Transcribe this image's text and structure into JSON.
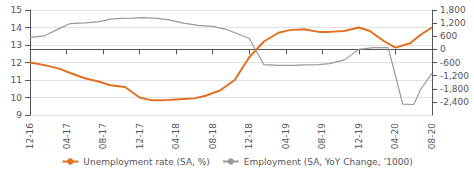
{
  "chart_data": {
    "type": "line",
    "xlim": [
      0,
      11
    ],
    "xticks": [
      {
        "value": 0,
        "label": "12-16"
      },
      {
        "value": 1,
        "label": "04-17"
      },
      {
        "value": 2,
        "label": "08-17"
      },
      {
        "value": 3,
        "label": "12-17"
      },
      {
        "value": 4,
        "label": "04-18"
      },
      {
        "value": 5,
        "label": "08-18"
      },
      {
        "value": 6,
        "label": "12-18"
      },
      {
        "value": 7,
        "label": "04-19"
      },
      {
        "value": 8,
        "label": "08-19"
      },
      {
        "value": 9,
        "label": "12-19"
      },
      {
        "value": 10,
        "label": "04-20"
      },
      {
        "value": 11,
        "label": "08-20"
      }
    ],
    "ylim": [
      9,
      15
    ],
    "yticks": [
      9,
      10,
      11,
      12,
      13,
      14,
      15
    ],
    "y2lim": [
      -3000,
      1800
    ],
    "y2ticks": [
      {
        "value": -2400,
        "label": "-2,400"
      },
      {
        "value": -1800,
        "label": "-1,800"
      },
      {
        "value": -1200,
        "label": "-1,200"
      },
      -600,
      0,
      600,
      {
        "value": 1200,
        "label": "1,200"
      },
      {
        "value": 1800,
        "label": "1,800"
      }
    ],
    "grid": true,
    "legend": "bottom",
    "series": [
      {
        "name": "Unemployment rate (SA, %)",
        "color": "#E07020",
        "x": [
          0.0,
          0.4,
          0.8,
          1.1,
          1.5,
          1.9,
          2.2,
          2.6,
          3.0,
          3.3,
          3.7,
          4.1,
          4.5,
          4.8,
          5.2,
          5.6,
          6.0,
          6.4,
          6.8,
          7.1,
          7.5,
          7.9,
          8.2,
          8.6,
          9.0,
          9.3,
          9.7,
          10.0,
          10.4,
          10.7,
          11.0
        ],
        "values": [
          12.0,
          11.85,
          11.65,
          11.4,
          11.1,
          10.9,
          10.7,
          10.6,
          10.0,
          9.85,
          9.85,
          9.9,
          9.95,
          10.1,
          10.4,
          11.0,
          12.3,
          13.2,
          13.7,
          13.85,
          13.9,
          13.75,
          13.75,
          13.8,
          14.0,
          13.8,
          13.2,
          12.85,
          13.1,
          13.6,
          14.0
        ]
      },
      {
        "name": "Employment (SA, YoY Change, ’1000)",
        "color": "#999999",
        "axis": "y2",
        "x": [
          0.0,
          0.4,
          0.8,
          1.1,
          1.5,
          1.9,
          2.2,
          2.5,
          2.8,
          3.1,
          3.5,
          3.8,
          4.2,
          4.6,
          5.0,
          5.4,
          5.7,
          6.0,
          6.4,
          6.8,
          7.2,
          7.5,
          7.9,
          8.2,
          8.6,
          9.0,
          9.4,
          9.8,
          10.0,
          10.2,
          10.5,
          10.7,
          11.0
        ],
        "values": [
          550,
          620,
          950,
          1180,
          1210,
          1270,
          1380,
          1420,
          1430,
          1450,
          1420,
          1350,
          1200,
          1100,
          1050,
          900,
          700,
          500,
          -700,
          -730,
          -730,
          -710,
          -700,
          -650,
          -480,
          0,
          80,
          80,
          -1200,
          -2500,
          -2520,
          -1800,
          -1100
        ]
      }
    ]
  }
}
